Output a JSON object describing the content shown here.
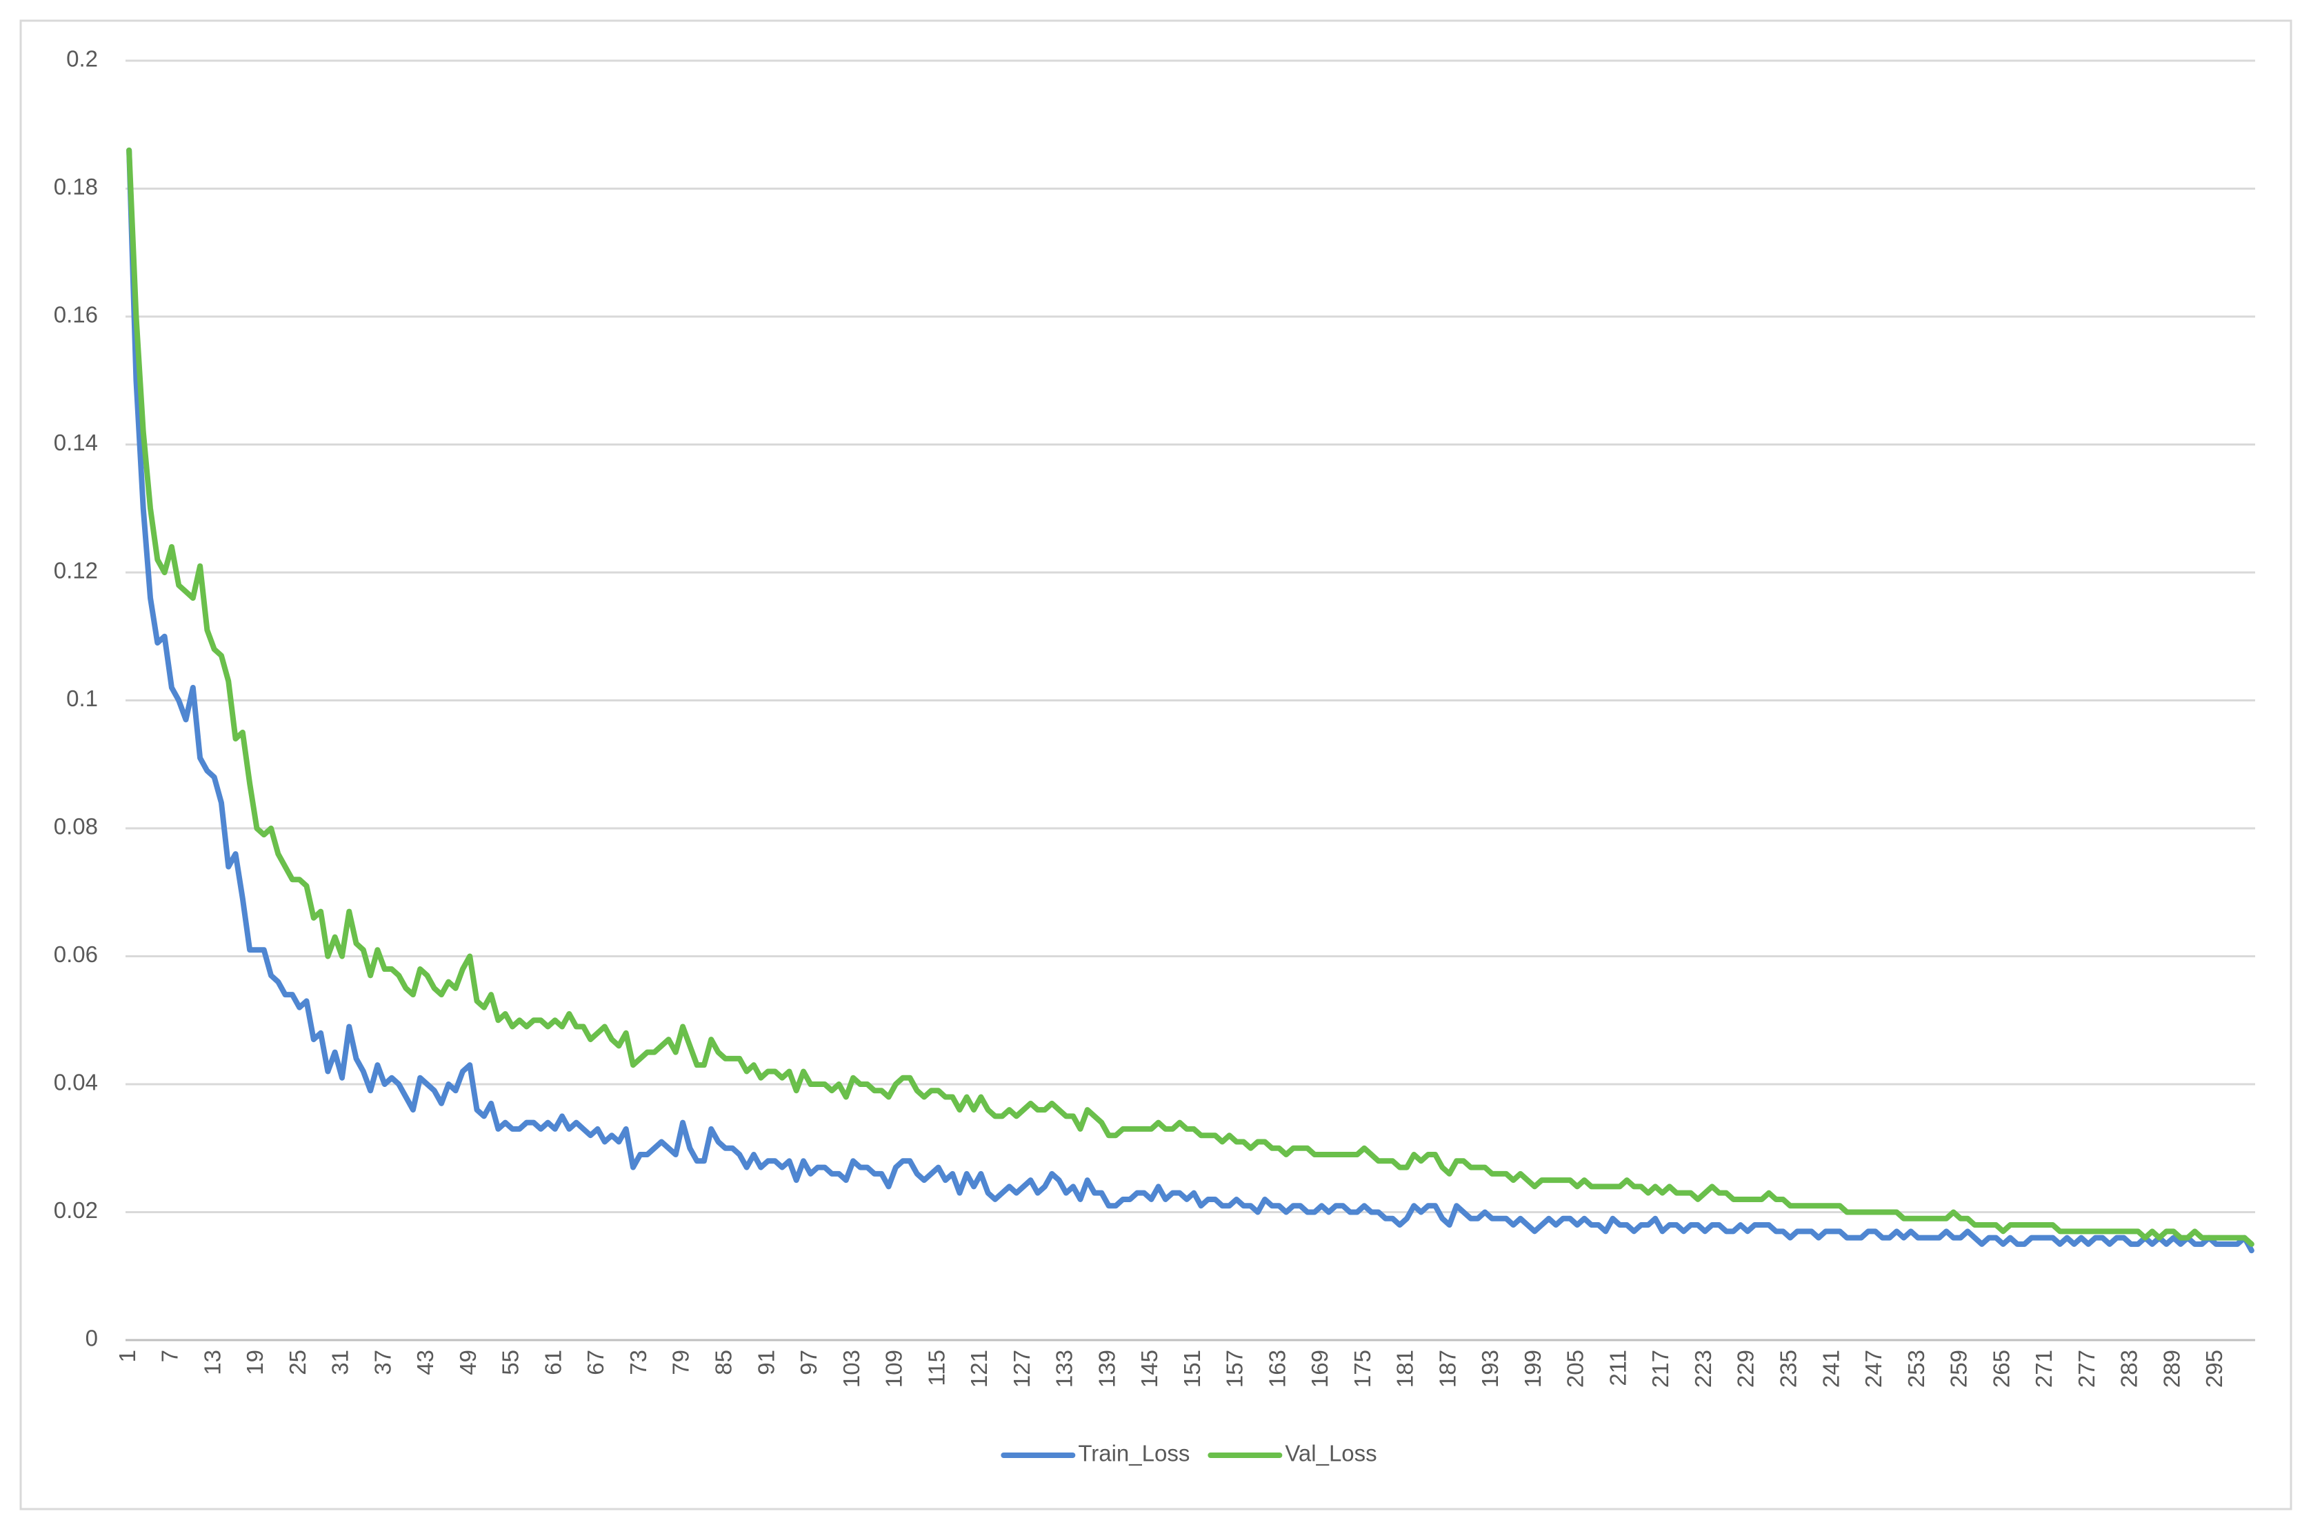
{
  "chart_data": {
    "type": "line",
    "categories": [
      1,
      null,
      null,
      null,
      null,
      null,
      7,
      null,
      null,
      null,
      null,
      null,
      13,
      null,
      null,
      null,
      null,
      null,
      19,
      null,
      null,
      null,
      null,
      null,
      25,
      null,
      null,
      null,
      null,
      null,
      31,
      null,
      null,
      null,
      null,
      null,
      37,
      null,
      null,
      null,
      null,
      null,
      43,
      null,
      null,
      null,
      null,
      null,
      49,
      null,
      null,
      null,
      null,
      null,
      55,
      null,
      null,
      null,
      null,
      null,
      61,
      null,
      null,
      null,
      null,
      null,
      67,
      null,
      null,
      null,
      null,
      null,
      73,
      null,
      null,
      null,
      null,
      null,
      79,
      null,
      null,
      null,
      null,
      null,
      85,
      null,
      null,
      null,
      null,
      null,
      91,
      null,
      null,
      null,
      null,
      null,
      97,
      null,
      null,
      null,
      null,
      null,
      103,
      null,
      null,
      null,
      null,
      null,
      109,
      null,
      null,
      null,
      null,
      null,
      115,
      null,
      null,
      null,
      null,
      null,
      121,
      null,
      null,
      null,
      null,
      null,
      127,
      null,
      null,
      null,
      null,
      null,
      133,
      null,
      null,
      null,
      null,
      null,
      139,
      null,
      null,
      null,
      null,
      null,
      145,
      null,
      null,
      null,
      null,
      null,
      151,
      null,
      null,
      null,
      null,
      null,
      157,
      null,
      null,
      null,
      null,
      null,
      163,
      null,
      null,
      null,
      null,
      null,
      169,
      null,
      null,
      null,
      null,
      null,
      175,
      null,
      null,
      null,
      null,
      null,
      181,
      null,
      null,
      null,
      null,
      null,
      187,
      null,
      null,
      null,
      null,
      null,
      193,
      null,
      null,
      null,
      null,
      null,
      199,
      null,
      null,
      null,
      null,
      null,
      205,
      null,
      null,
      null,
      null,
      null,
      211,
      null,
      null,
      null,
      null,
      null,
      217,
      null,
      null,
      null,
      null,
      null,
      223,
      null,
      null,
      null,
      null,
      null,
      229,
      null,
      null,
      null,
      null,
      null,
      235,
      null,
      null,
      null,
      null,
      null,
      241,
      null,
      null,
      null,
      null,
      null,
      247,
      null,
      null,
      null,
      null,
      null,
      253,
      null,
      null,
      null,
      null,
      null,
      259,
      null,
      null,
      null,
      null,
      null,
      265,
      null,
      null,
      null,
      null,
      null,
      271,
      null,
      null,
      null,
      null,
      null,
      277,
      null,
      null,
      null,
      null,
      null,
      283,
      null,
      null,
      null,
      null,
      null,
      289,
      null,
      null,
      null,
      null,
      null,
      295,
      null,
      null,
      null,
      null,
      null
    ],
    "series": [
      {
        "name": "Train_Loss",
        "color": "#4f86d1",
        "values": [
          0.186,
          0.15,
          0.13,
          0.116,
          0.109,
          0.11,
          0.102,
          0.1,
          0.097,
          0.102,
          0.091,
          0.089,
          0.088,
          0.084,
          0.074,
          0.076,
          0.069,
          0.061,
          0.061,
          0.061,
          0.057,
          0.056,
          0.054,
          0.054,
          0.052,
          0.053,
          0.047,
          0.048,
          0.042,
          0.045,
          0.041,
          0.049,
          0.044,
          0.042,
          0.039,
          0.043,
          0.04,
          0.041,
          0.04,
          0.038,
          0.036,
          0.041,
          0.04,
          0.039,
          0.037,
          0.04,
          0.039,
          0.042,
          0.043,
          0.036,
          0.035,
          0.037,
          0.033,
          0.034,
          0.033,
          0.033,
          0.034,
          0.034,
          0.033,
          0.034,
          0.033,
          0.035,
          0.033,
          0.034,
          0.033,
          0.032,
          0.033,
          0.031,
          0.032,
          0.031,
          0.033,
          0.027,
          0.029,
          0.029,
          0.03,
          0.031,
          0.03,
          0.029,
          0.034,
          0.03,
          0.028,
          0.028,
          0.033,
          0.031,
          0.03,
          0.03,
          0.029,
          0.027,
          0.029,
          0.027,
          0.028,
          0.028,
          0.027,
          0.028,
          0.025,
          0.028,
          0.026,
          0.027,
          0.027,
          0.026,
          0.026,
          0.025,
          0.028,
          0.027,
          0.027,
          0.026,
          0.026,
          0.024,
          0.027,
          0.028,
          0.028,
          0.026,
          0.025,
          0.026,
          0.027,
          0.025,
          0.026,
          0.023,
          0.026,
          0.024,
          0.026,
          0.023,
          0.022,
          0.023,
          0.024,
          0.023,
          0.024,
          0.025,
          0.023,
          0.024,
          0.026,
          0.025,
          0.023,
          0.024,
          0.022,
          0.025,
          0.023,
          0.023,
          0.021,
          0.021,
          0.022,
          0.022,
          0.023,
          0.023,
          0.022,
          0.024,
          0.022,
          0.023,
          0.023,
          0.022,
          0.023,
          0.021,
          0.022,
          0.022,
          0.021,
          0.021,
          0.022,
          0.021,
          0.021,
          0.02,
          0.022,
          0.021,
          0.021,
          0.02,
          0.021,
          0.021,
          0.02,
          0.02,
          0.021,
          0.02,
          0.021,
          0.021,
          0.02,
          0.02,
          0.021,
          0.02,
          0.02,
          0.019,
          0.019,
          0.018,
          0.019,
          0.021,
          0.02,
          0.021,
          0.021,
          0.019,
          0.018,
          0.021,
          0.02,
          0.019,
          0.019,
          0.02,
          0.019,
          0.019,
          0.019,
          0.018,
          0.019,
          0.018,
          0.017,
          0.018,
          0.019,
          0.018,
          0.019,
          0.019,
          0.018,
          0.019,
          0.018,
          0.018,
          0.017,
          0.019,
          0.018,
          0.018,
          0.017,
          0.018,
          0.018,
          0.019,
          0.017,
          0.018,
          0.018,
          0.017,
          0.018,
          0.018,
          0.017,
          0.018,
          0.018,
          0.017,
          0.017,
          0.018,
          0.017,
          0.018,
          0.018,
          0.018,
          0.017,
          0.017,
          0.016,
          0.017,
          0.017,
          0.017,
          0.016,
          0.017,
          0.017,
          0.017,
          0.016,
          0.016,
          0.016,
          0.017,
          0.017,
          0.016,
          0.016,
          0.017,
          0.016,
          0.017,
          0.016,
          0.016,
          0.016,
          0.016,
          0.017,
          0.016,
          0.016,
          0.017,
          0.016,
          0.015,
          0.016,
          0.016,
          0.015,
          0.016,
          0.015,
          0.015,
          0.016,
          0.016,
          0.016,
          0.016,
          0.015,
          0.016,
          0.015,
          0.016,
          0.015,
          0.016,
          0.016,
          0.015,
          0.016,
          0.016,
          0.015,
          0.015,
          0.016,
          0.015,
          0.016,
          0.015,
          0.016,
          0.015,
          0.016,
          0.015,
          0.015,
          0.016,
          0.015,
          0.015,
          0.015,
          0.015,
          0.016,
          0.014
        ]
      },
      {
        "name": "Val_Loss",
        "color": "#6abf4b",
        "values": [
          0.186,
          0.16,
          0.142,
          0.13,
          0.122,
          0.12,
          0.124,
          0.118,
          0.117,
          0.116,
          0.121,
          0.111,
          0.108,
          0.107,
          0.103,
          0.094,
          0.095,
          0.087,
          0.08,
          0.079,
          0.08,
          0.076,
          0.074,
          0.072,
          0.072,
          0.071,
          0.066,
          0.067,
          0.06,
          0.063,
          0.06,
          0.067,
          0.062,
          0.061,
          0.057,
          0.061,
          0.058,
          0.058,
          0.057,
          0.055,
          0.054,
          0.058,
          0.057,
          0.055,
          0.054,
          0.056,
          0.055,
          0.058,
          0.06,
          0.053,
          0.052,
          0.054,
          0.05,
          0.051,
          0.049,
          0.05,
          0.049,
          0.05,
          0.05,
          0.049,
          0.05,
          0.049,
          0.051,
          0.049,
          0.049,
          0.047,
          0.048,
          0.049,
          0.047,
          0.046,
          0.048,
          0.043,
          0.044,
          0.045,
          0.045,
          0.046,
          0.047,
          0.045,
          0.049,
          0.046,
          0.043,
          0.043,
          0.047,
          0.045,
          0.044,
          0.044,
          0.044,
          0.042,
          0.043,
          0.041,
          0.042,
          0.042,
          0.041,
          0.042,
          0.039,
          0.042,
          0.04,
          0.04,
          0.04,
          0.039,
          0.04,
          0.038,
          0.041,
          0.04,
          0.04,
          0.039,
          0.039,
          0.038,
          0.04,
          0.041,
          0.041,
          0.039,
          0.038,
          0.039,
          0.039,
          0.038,
          0.038,
          0.036,
          0.038,
          0.036,
          0.038,
          0.036,
          0.035,
          0.035,
          0.036,
          0.035,
          0.036,
          0.037,
          0.036,
          0.036,
          0.037,
          0.036,
          0.035,
          0.035,
          0.033,
          0.036,
          0.035,
          0.034,
          0.032,
          0.032,
          0.033,
          0.033,
          0.033,
          0.033,
          0.033,
          0.034,
          0.033,
          0.033,
          0.034,
          0.033,
          0.033,
          0.032,
          0.032,
          0.032,
          0.031,
          0.032,
          0.031,
          0.031,
          0.03,
          0.031,
          0.031,
          0.03,
          0.03,
          0.029,
          0.03,
          0.03,
          0.03,
          0.029,
          0.029,
          0.029,
          0.029,
          0.029,
          0.029,
          0.029,
          0.03,
          0.029,
          0.028,
          0.028,
          0.028,
          0.027,
          0.027,
          0.029,
          0.028,
          0.029,
          0.029,
          0.027,
          0.026,
          0.028,
          0.028,
          0.027,
          0.027,
          0.027,
          0.026,
          0.026,
          0.026,
          0.025,
          0.026,
          0.025,
          0.024,
          0.025,
          0.025,
          0.025,
          0.025,
          0.025,
          0.024,
          0.025,
          0.024,
          0.024,
          0.024,
          0.024,
          0.024,
          0.025,
          0.024,
          0.024,
          0.023,
          0.024,
          0.023,
          0.024,
          0.023,
          0.023,
          0.023,
          0.022,
          0.023,
          0.024,
          0.023,
          0.023,
          0.022,
          0.022,
          0.022,
          0.022,
          0.022,
          0.023,
          0.022,
          0.022,
          0.021,
          0.021,
          0.021,
          0.021,
          0.021,
          0.021,
          0.021,
          0.021,
          0.02,
          0.02,
          0.02,
          0.02,
          0.02,
          0.02,
          0.02,
          0.02,
          0.019,
          0.019,
          0.019,
          0.019,
          0.019,
          0.019,
          0.019,
          0.02,
          0.019,
          0.019,
          0.018,
          0.018,
          0.018,
          0.018,
          0.017,
          0.018,
          0.018,
          0.018,
          0.018,
          0.018,
          0.018,
          0.018,
          0.017,
          0.017,
          0.017,
          0.017,
          0.017,
          0.017,
          0.017,
          0.017,
          0.017,
          0.017,
          0.017,
          0.017,
          0.016,
          0.017,
          0.016,
          0.017,
          0.017,
          0.016,
          0.016,
          0.017,
          0.016,
          0.016,
          0.016,
          0.016,
          0.016,
          0.016,
          0.016,
          0.015
        ]
      }
    ],
    "ylim": [
      0,
      0.2
    ],
    "yticks": [
      0,
      0.02,
      0.04,
      0.06,
      0.08,
      0.1,
      0.12,
      0.14,
      0.16,
      0.18,
      0.2
    ],
    "grid": true,
    "legend": "bottom"
  }
}
